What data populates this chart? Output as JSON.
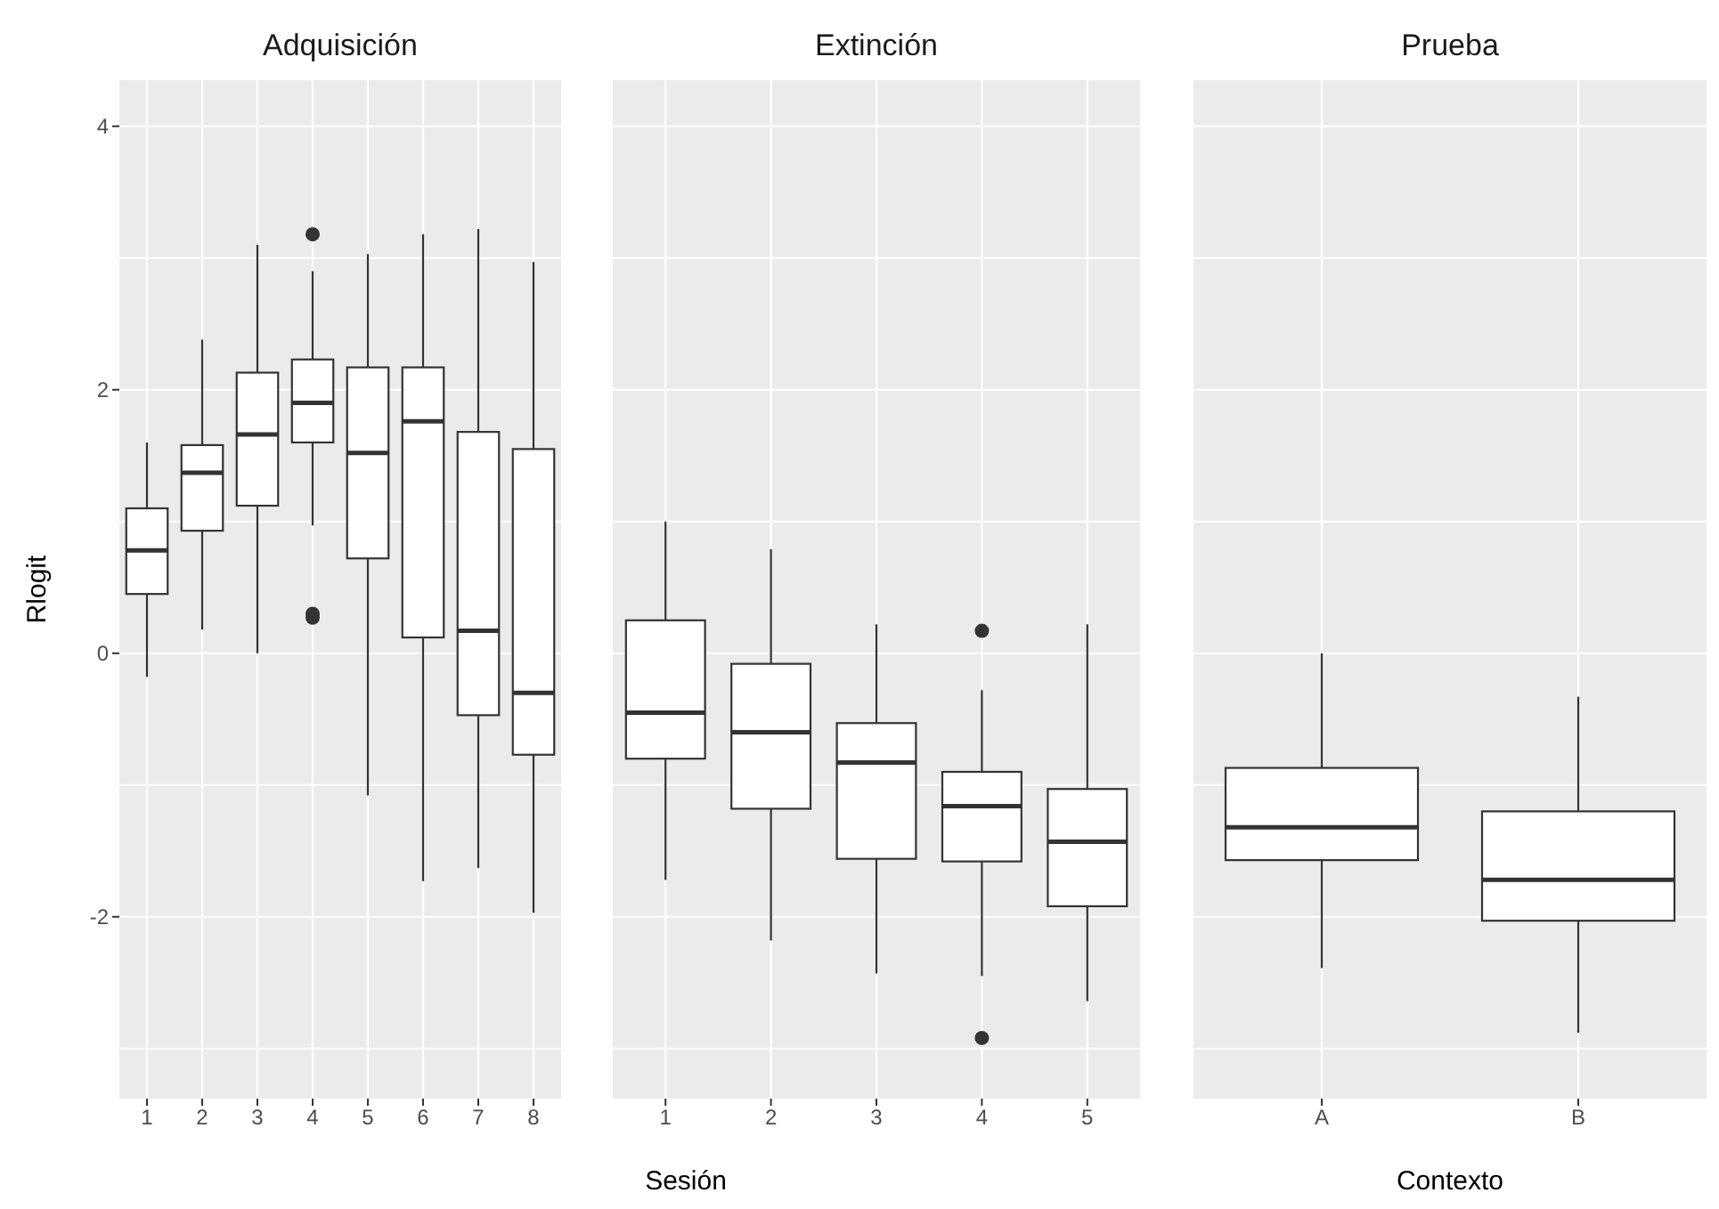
{
  "chart_data": [
    {
      "type": "box",
      "title": "Adquisición",
      "ylabel": "Rlogit",
      "categories": [
        "1",
        "2",
        "3",
        "4",
        "5",
        "6",
        "7",
        "8"
      ],
      "ylim": [
        -3.38,
        4.35
      ],
      "yticks": [
        -2,
        0,
        2,
        4
      ],
      "grid": true,
      "boxes": [
        {
          "low": -0.18,
          "q1": 0.45,
          "median": 0.78,
          "q3": 1.1,
          "high": 1.6
        },
        {
          "low": 0.18,
          "q1": 0.93,
          "median": 1.37,
          "q3": 1.58,
          "high": 2.38
        },
        {
          "low": 0.0,
          "q1": 1.12,
          "median": 1.66,
          "q3": 2.13,
          "high": 3.1
        },
        {
          "low": 0.97,
          "q1": 1.6,
          "median": 1.9,
          "q3": 2.23,
          "high": 2.9,
          "outliers": [
            3.18,
            0.3,
            0.27
          ]
        },
        {
          "low": -1.08,
          "q1": 0.72,
          "median": 1.52,
          "q3": 2.17,
          "high": 3.03
        },
        {
          "low": -1.73,
          "q1": 0.12,
          "median": 1.76,
          "q3": 2.17,
          "high": 3.18
        },
        {
          "low": -1.63,
          "q1": -0.47,
          "median": 0.17,
          "q3": 1.68,
          "high": 3.22
        },
        {
          "low": -1.97,
          "q1": -0.77,
          "median": -0.3,
          "q3": 1.55,
          "high": 2.97
        }
      ]
    },
    {
      "type": "box",
      "title": "Extinción",
      "xlabel": "Sesión",
      "categories": [
        "1",
        "2",
        "3",
        "4",
        "5"
      ],
      "ylim": [
        -3.38,
        4.35
      ],
      "yticks": [
        -2,
        0,
        2,
        4
      ],
      "grid": true,
      "tick_labels": "x",
      "boxes": [
        {
          "low": -1.72,
          "q1": -0.8,
          "median": -0.45,
          "q3": 0.25,
          "high": 1.0
        },
        {
          "low": -2.18,
          "q1": -1.18,
          "median": -0.6,
          "q3": -0.08,
          "high": 0.79
        },
        {
          "low": -2.43,
          "q1": -1.56,
          "median": -0.83,
          "q3": -0.53,
          "high": 0.22
        },
        {
          "low": -2.45,
          "q1": -1.58,
          "median": -1.16,
          "q3": -0.9,
          "high": -0.28,
          "outliers": [
            0.17,
            -2.92
          ]
        },
        {
          "low": -2.64,
          "q1": -1.92,
          "median": -1.43,
          "q3": -1.03,
          "high": 0.22
        }
      ]
    },
    {
      "type": "box",
      "title": "Prueba",
      "xlabel": "Contexto",
      "categories": [
        "A",
        "B"
      ],
      "ylim": [
        -3.38,
        4.35
      ],
      "yticks": [
        -2,
        0,
        2,
        4
      ],
      "grid": true,
      "tick_labels": "x",
      "boxes": [
        {
          "low": -2.39,
          "q1": -1.57,
          "median": -1.32,
          "q3": -0.87,
          "high": 0.0
        },
        {
          "low": -2.88,
          "q1": -2.03,
          "median": -1.72,
          "q3": -1.2,
          "high": -0.33
        }
      ]
    }
  ]
}
